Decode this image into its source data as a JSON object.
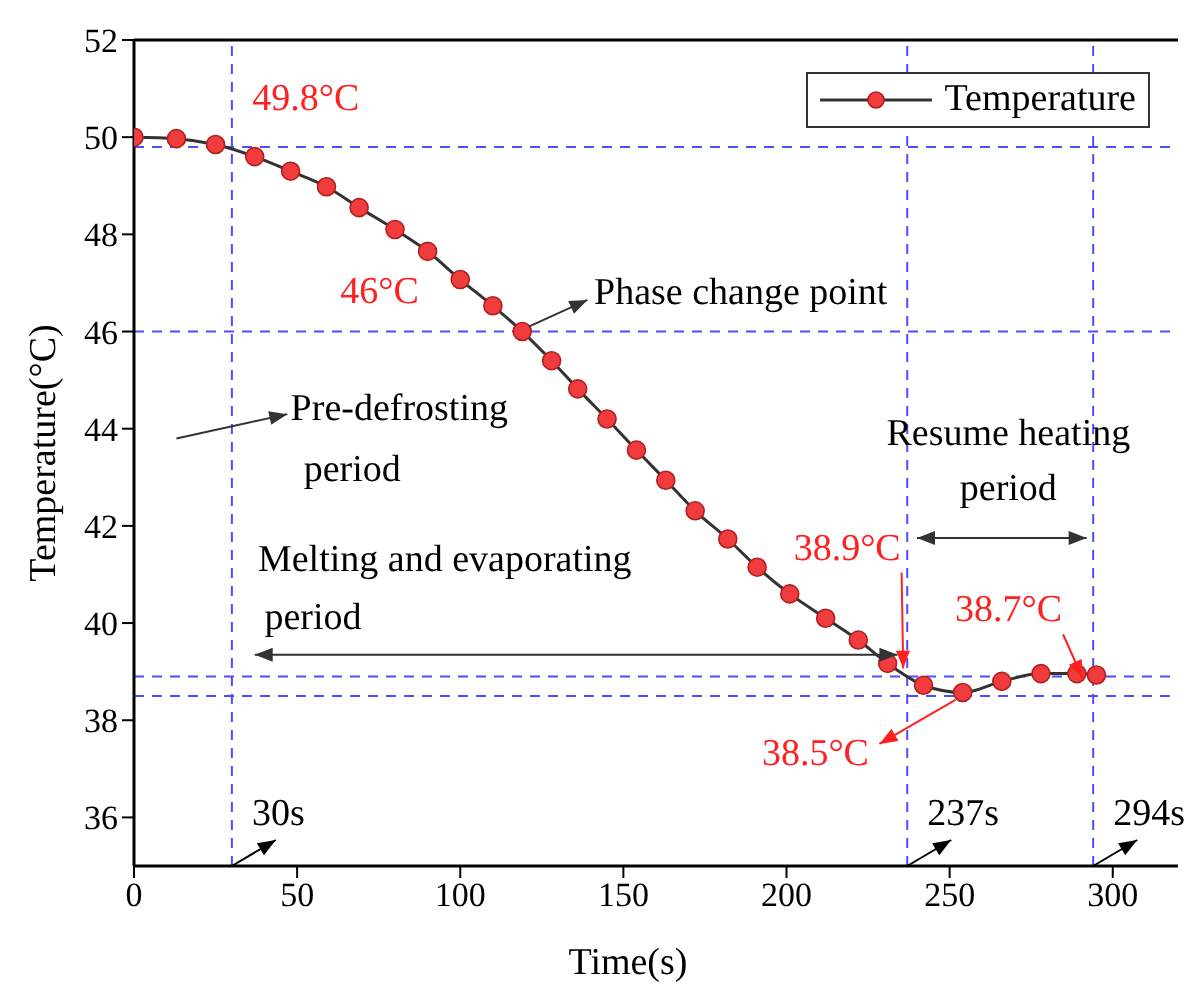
{
  "chart_data": {
    "type": "line",
    "xlabel": "Time(s)",
    "ylabel": "Temperature(°C)",
    "x": [
      0,
      13,
      25,
      37,
      48,
      59,
      69,
      80,
      90,
      100,
      110,
      119,
      128,
      136,
      145,
      154,
      163,
      172,
      182,
      191,
      201,
      212,
      222,
      231,
      242,
      254,
      266,
      278,
      289,
      295
    ],
    "series": [
      {
        "name": "Temperature",
        "color": "#333333",
        "colors": [
          "#f03c3c",
          "#f03c3c",
          "#f03c3c",
          "#f03c3c",
          "#f03c3c",
          "#f03c3c",
          "#f03c3c",
          "#f03c3c",
          "#f03c3c",
          "#f03c3c",
          "#f03c3c",
          "#f03c3c",
          "#f03c3c",
          "#f03c3c",
          "#f03c3c",
          "#f03c3c",
          "#f03c3c",
          "#f03c3c",
          "#f03c3c",
          "#f03c3c",
          "#f03c3c",
          "#f03c3c",
          "#f03c3c",
          "#f03c3c",
          "#f03c3c",
          "#f03c3c",
          "#f03c3c",
          "#f03c3c",
          "#f03c3c",
          "#f03c3c"
        ],
        "values": [
          50.0,
          49.97,
          49.85,
          49.6,
          49.3,
          48.98,
          48.55,
          48.1,
          47.65,
          47.07,
          46.53,
          46.0,
          45.4,
          44.82,
          44.2,
          43.56,
          42.94,
          42.31,
          41.73,
          41.15,
          40.6,
          40.1,
          39.65,
          39.17,
          38.72,
          38.57,
          38.8,
          38.96,
          38.96,
          38.93
        ]
      }
    ],
    "xlim": [
      0,
      320
    ],
    "xticks": [
      0,
      50,
      100,
      150,
      200,
      250,
      300
    ],
    "ylim": [
      35,
      52
    ],
    "yticks": [
      36,
      38,
      40,
      42,
      44,
      46,
      48,
      50,
      52
    ],
    "marker": "circle",
    "line_style": "solid",
    "legend": "top right",
    "grid": false,
    "ref_lines": [
      {
        "axis": "x",
        "value": 30,
        "label": "30s",
        "color": "#4d4dff",
        "line_style": "dashed"
      },
      {
        "axis": "x",
        "value": 237,
        "label": "237s",
        "color": "#4d4dff",
        "line_style": "dashed"
      },
      {
        "axis": "x",
        "value": 294,
        "label": "294s",
        "color": "#4d4dff",
        "line_style": "dashed"
      },
      {
        "axis": "y",
        "value": 49.8,
        "color": "#4d4dff",
        "line_style": "dashed"
      },
      {
        "axis": "y",
        "value": 46,
        "color": "#4d4dff",
        "line_style": "dashed"
      },
      {
        "axis": "y",
        "value": 38.9,
        "color": "#4d4dff",
        "line_style": "dashed"
      },
      {
        "axis": "y",
        "value": 38.5,
        "color": "#4d4dff",
        "line_style": "dashed"
      }
    ],
    "annotations": [
      {
        "text": "49.8°C",
        "x": 30,
        "y": 49.8
      },
      {
        "text": "46°C",
        "x": 120,
        "y": 46
      },
      {
        "text": "38.9°C",
        "x": 237,
        "y": 38.9
      },
      {
        "text": "38.5°C",
        "x": 253,
        "y": 38.5
      },
      {
        "text": "38.7°C",
        "x": 292,
        "y": 38.7
      },
      "Phase change point",
      "Pre-defrosting period",
      "Melting and evaporating period",
      "Resume heating period"
    ]
  }
}
